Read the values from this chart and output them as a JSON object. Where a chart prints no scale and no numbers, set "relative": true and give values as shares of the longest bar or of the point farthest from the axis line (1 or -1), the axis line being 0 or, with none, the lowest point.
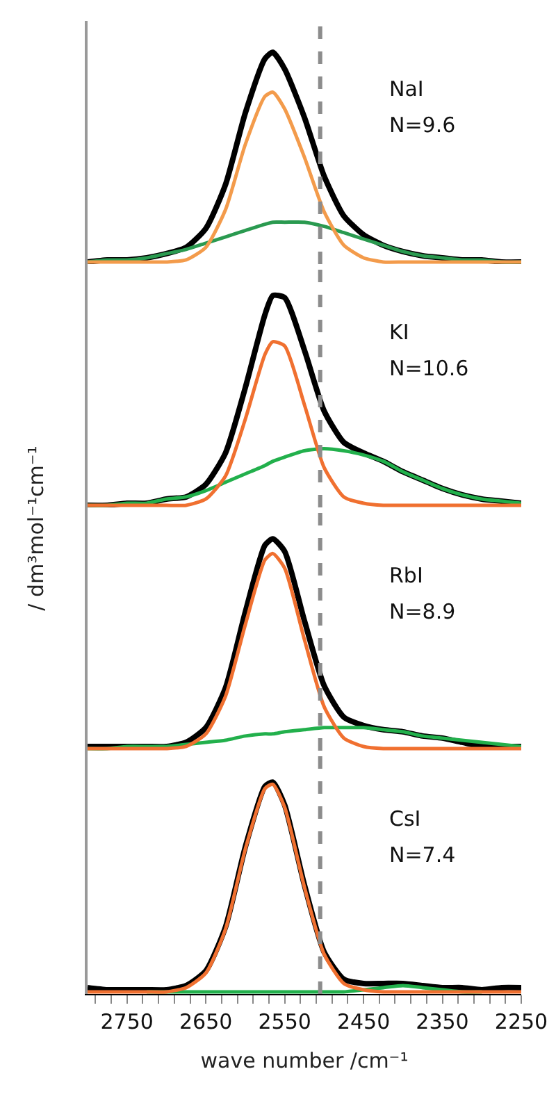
{
  "chart_data": [
    {
      "type": "line",
      "relative": true,
      "x": [
        2800,
        2775,
        2750,
        2725,
        2700,
        2675,
        2650,
        2625,
        2600,
        2575,
        2565,
        2550,
        2525,
        2500,
        2475,
        2450,
        2425,
        2400,
        2375,
        2350,
        2325,
        2300,
        2275,
        2250
      ],
      "xlim": [
        2800,
        2250
      ],
      "tick_labels": false,
      "annotations": [
        "NaI",
        "N=9.6"
      ],
      "ref_lines": [
        {
          "axis": "x",
          "value": 2505,
          "color": "#8c8c8c",
          "line_style": "dashed"
        }
      ],
      "series": [
        {
          "color": "#000000",
          "values": [
            0,
            0.01,
            0.01,
            0.02,
            0.04,
            0.07,
            0.16,
            0.37,
            0.71,
            0.97,
            1.0,
            0.92,
            0.69,
            0.41,
            0.22,
            0.13,
            0.08,
            0.05,
            0.03,
            0.02,
            0.01,
            0.01,
            0,
            0
          ]
        },
        {
          "color": "#2a9a50",
          "values": [
            0,
            0.01,
            0.01,
            0.02,
            0.04,
            0.06,
            0.09,
            0.12,
            0.15,
            0.18,
            0.19,
            0.19,
            0.19,
            0.17,
            0.14,
            0.11,
            0.08,
            0.05,
            0.03,
            0.02,
            0.01,
            0.01,
            0,
            0
          ]
        },
        {
          "color": "#f39b4b",
          "values": [
            0,
            0,
            0,
            0,
            0,
            0.01,
            0.07,
            0.25,
            0.56,
            0.79,
            0.81,
            0.73,
            0.5,
            0.24,
            0.08,
            0.02,
            0,
            0,
            0,
            0,
            0,
            0,
            0,
            0
          ]
        }
      ]
    },
    {
      "type": "line",
      "relative": true,
      "ylabel": "/ dm³mol⁻¹cm⁻¹",
      "x": [
        2800,
        2775,
        2750,
        2725,
        2700,
        2675,
        2650,
        2625,
        2600,
        2575,
        2565,
        2550,
        2525,
        2500,
        2475,
        2450,
        2425,
        2400,
        2375,
        2350,
        2325,
        2300,
        2275,
        2250
      ],
      "xlim": [
        2800,
        2250
      ],
      "tick_labels": false,
      "annotations": [
        "KI",
        "N=10.6"
      ],
      "ref_lines": [
        {
          "axis": "x",
          "value": 2505,
          "color": "#8c8c8c",
          "line_style": "dashed"
        }
      ],
      "series": [
        {
          "color": "#000000",
          "values": [
            0,
            0,
            0.01,
            0.01,
            0.03,
            0.04,
            0.1,
            0.25,
            0.56,
            0.91,
            1.0,
            0.99,
            0.74,
            0.45,
            0.3,
            0.25,
            0.21,
            0.16,
            0.12,
            0.08,
            0.05,
            0.03,
            0.02,
            0.01
          ]
        },
        {
          "color": "#22b04c",
          "values": [
            0,
            0,
            0.01,
            0.01,
            0.03,
            0.04,
            0.07,
            0.11,
            0.15,
            0.19,
            0.21,
            0.23,
            0.26,
            0.27,
            0.26,
            0.24,
            0.21,
            0.16,
            0.12,
            0.08,
            0.05,
            0.03,
            0.02,
            0.01
          ]
        },
        {
          "color": "#f07030",
          "values": [
            0,
            0,
            0,
            0,
            0,
            0,
            0.03,
            0.14,
            0.41,
            0.72,
            0.78,
            0.76,
            0.48,
            0.18,
            0.04,
            0.01,
            0,
            0,
            0,
            0,
            0,
            0,
            0,
            0
          ]
        }
      ]
    },
    {
      "type": "line",
      "relative": true,
      "x": [
        2800,
        2775,
        2750,
        2725,
        2700,
        2675,
        2650,
        2625,
        2600,
        2575,
        2565,
        2550,
        2525,
        2500,
        2475,
        2450,
        2425,
        2400,
        2375,
        2350,
        2325,
        2300,
        2275,
        2250
      ],
      "xlim": [
        2800,
        2250
      ],
      "tick_labels": false,
      "annotations": [
        "RbI",
        "N=8.9"
      ],
      "ref_lines": [
        {
          "axis": "x",
          "value": 2505,
          "color": "#8c8c8c",
          "line_style": "dashed"
        }
      ],
      "series": [
        {
          "color": "#000000",
          "values": [
            0.01,
            0.01,
            0.01,
            0.01,
            0.01,
            0.03,
            0.1,
            0.29,
            0.65,
            0.97,
            1.0,
            0.94,
            0.61,
            0.3,
            0.15,
            0.11,
            0.09,
            0.08,
            0.06,
            0.05,
            0.03,
            0.01,
            0.01,
            0.01
          ]
        },
        {
          "color": "#22b04c",
          "values": [
            0,
            0,
            0.01,
            0.01,
            0.01,
            0.02,
            0.03,
            0.04,
            0.06,
            0.07,
            0.07,
            0.08,
            0.09,
            0.1,
            0.1,
            0.1,
            0.09,
            0.08,
            0.06,
            0.05,
            0.04,
            0.03,
            0.02,
            0.01
          ]
        },
        {
          "color": "#f07030",
          "values": [
            0,
            0,
            0,
            0,
            0,
            0.01,
            0.07,
            0.25,
            0.59,
            0.9,
            0.93,
            0.86,
            0.52,
            0.2,
            0.05,
            0.01,
            0,
            0,
            0,
            0,
            0,
            0,
            0,
            0
          ]
        }
      ]
    },
    {
      "type": "line",
      "relative": true,
      "xlabel": "wave number /cm⁻¹",
      "x": [
        2800,
        2775,
        2750,
        2725,
        2700,
        2675,
        2650,
        2625,
        2600,
        2575,
        2565,
        2550,
        2525,
        2500,
        2475,
        2450,
        2425,
        2400,
        2375,
        2350,
        2325,
        2300,
        2275,
        2250
      ],
      "xlim": [
        2800,
        2250
      ],
      "tick_labels": "x",
      "xticks": [
        {
          "value": 2790,
          "label": null
        },
        {
          "value": 2770,
          "label": null
        },
        2750,
        {
          "value": 2730,
          "label": null
        },
        {
          "value": 2710,
          "label": null
        },
        {
          "value": 2690,
          "label": null
        },
        {
          "value": 2670,
          "label": null
        },
        2650,
        {
          "value": 2630,
          "label": null
        },
        {
          "value": 2610,
          "label": null
        },
        {
          "value": 2590,
          "label": null
        },
        {
          "value": 2570,
          "label": null
        },
        2550,
        {
          "value": 2530,
          "label": null
        },
        {
          "value": 2510,
          "label": null
        },
        {
          "value": 2490,
          "label": null
        },
        {
          "value": 2470,
          "label": null
        },
        2450,
        {
          "value": 2430,
          "label": null
        },
        {
          "value": 2410,
          "label": null
        },
        {
          "value": 2390,
          "label": null
        },
        {
          "value": 2370,
          "label": null
        },
        2350,
        {
          "value": 2330,
          "label": null
        },
        {
          "value": 2310,
          "label": null
        },
        {
          "value": 2290,
          "label": null
        },
        {
          "value": 2270,
          "label": null
        },
        2250
      ],
      "annotations": [
        "CsI",
        "N=7.4"
      ],
      "ref_lines": [
        {
          "axis": "x",
          "value": 2505,
          "color": "#8c8c8c",
          "line_style": "dashed"
        }
      ],
      "series": [
        {
          "color": "#000000",
          "values": [
            0.02,
            0.01,
            0.01,
            0.01,
            0.01,
            0.03,
            0.1,
            0.31,
            0.69,
            0.98,
            1.0,
            0.89,
            0.51,
            0.19,
            0.06,
            0.04,
            0.04,
            0.04,
            0.03,
            0.02,
            0.02,
            0.01,
            0.02,
            0.02
          ]
        },
        {
          "color": "#22b04c",
          "values": [
            null,
            null,
            null,
            0,
            0,
            0,
            0,
            0,
            0,
            0,
            0,
            0,
            0,
            0,
            0,
            0.01,
            0.02,
            0.03,
            0.02,
            0.01,
            0,
            0,
            null,
            null
          ]
        },
        {
          "color": "#f07030",
          "values": [
            0,
            0,
            0,
            0,
            0,
            0.02,
            0.09,
            0.3,
            0.68,
            0.97,
            0.99,
            0.88,
            0.5,
            0.18,
            0.04,
            0.01,
            0,
            0,
            0,
            0,
            0,
            0,
            0,
            0
          ]
        }
      ]
    }
  ]
}
